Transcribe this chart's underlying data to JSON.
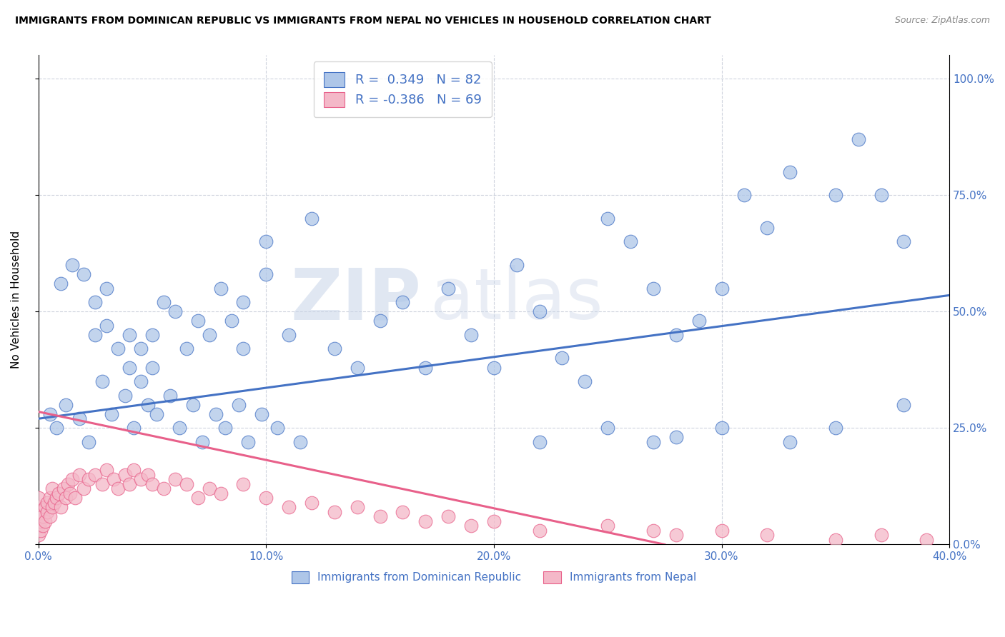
{
  "title": "IMMIGRANTS FROM DOMINICAN REPUBLIC VS IMMIGRANTS FROM NEPAL NO VEHICLES IN HOUSEHOLD CORRELATION CHART",
  "source": "Source: ZipAtlas.com",
  "ylabel": "No Vehicles in Household",
  "legend_label1": "Immigrants from Dominican Republic",
  "legend_label2": "Immigrants from Nepal",
  "r1": 0.349,
  "n1": 82,
  "r2": -0.386,
  "n2": 69,
  "color_blue": "#aec6e8",
  "color_pink": "#f4b8c8",
  "color_blue_dark": "#4472c4",
  "color_pink_dark": "#e8608a",
  "line_color_blue": "#4472c4",
  "line_color_pink": "#e8608a",
  "watermark_zip": "ZIP",
  "watermark_atlas": "atlas",
  "xlim": [
    0.0,
    0.4
  ],
  "ylim": [
    0.0,
    1.05
  ],
  "blue_trend_x0": 0.0,
  "blue_trend_y0": 0.27,
  "blue_trend_x1": 0.4,
  "blue_trend_y1": 0.535,
  "pink_trend_x0": 0.0,
  "pink_trend_y0": 0.285,
  "pink_trend_x1": 0.275,
  "pink_trend_y1": 0.0,
  "blue_x": [
    0.01,
    0.015,
    0.02,
    0.025,
    0.025,
    0.03,
    0.03,
    0.035,
    0.04,
    0.04,
    0.045,
    0.045,
    0.05,
    0.05,
    0.055,
    0.06,
    0.065,
    0.07,
    0.075,
    0.08,
    0.085,
    0.09,
    0.09,
    0.1,
    0.1,
    0.11,
    0.12,
    0.13,
    0.14,
    0.15,
    0.16,
    0.17,
    0.18,
    0.19,
    0.2,
    0.21,
    0.22,
    0.23,
    0.24,
    0.25,
    0.26,
    0.27,
    0.28,
    0.29,
    0.3,
    0.31,
    0.32,
    0.33,
    0.35,
    0.36,
    0.37,
    0.38,
    0.38,
    0.35,
    0.33,
    0.3,
    0.28,
    0.27,
    0.25,
    0.22,
    0.005,
    0.008,
    0.012,
    0.018,
    0.022,
    0.028,
    0.032,
    0.038,
    0.042,
    0.048,
    0.052,
    0.058,
    0.062,
    0.068,
    0.072,
    0.078,
    0.082,
    0.088,
    0.092,
    0.098,
    0.105,
    0.115
  ],
  "blue_y": [
    0.56,
    0.6,
    0.58,
    0.45,
    0.52,
    0.47,
    0.55,
    0.42,
    0.38,
    0.45,
    0.35,
    0.42,
    0.38,
    0.45,
    0.52,
    0.5,
    0.42,
    0.48,
    0.45,
    0.55,
    0.48,
    0.52,
    0.42,
    0.65,
    0.58,
    0.45,
    0.7,
    0.42,
    0.38,
    0.48,
    0.52,
    0.38,
    0.55,
    0.45,
    0.38,
    0.6,
    0.5,
    0.4,
    0.35,
    0.7,
    0.65,
    0.55,
    0.45,
    0.48,
    0.55,
    0.75,
    0.68,
    0.8,
    0.75,
    0.87,
    0.75,
    0.65,
    0.3,
    0.25,
    0.22,
    0.25,
    0.23,
    0.22,
    0.25,
    0.22,
    0.28,
    0.25,
    0.3,
    0.27,
    0.22,
    0.35,
    0.28,
    0.32,
    0.25,
    0.3,
    0.28,
    0.32,
    0.25,
    0.3,
    0.22,
    0.28,
    0.25,
    0.3,
    0.22,
    0.28,
    0.25,
    0.22
  ],
  "pink_x": [
    0.0,
    0.0,
    0.0,
    0.0,
    0.0,
    0.001,
    0.001,
    0.001,
    0.002,
    0.002,
    0.003,
    0.003,
    0.004,
    0.004,
    0.005,
    0.005,
    0.006,
    0.006,
    0.007,
    0.008,
    0.009,
    0.01,
    0.011,
    0.012,
    0.013,
    0.014,
    0.015,
    0.016,
    0.018,
    0.02,
    0.022,
    0.025,
    0.028,
    0.03,
    0.033,
    0.035,
    0.038,
    0.04,
    0.042,
    0.045,
    0.048,
    0.05,
    0.055,
    0.06,
    0.065,
    0.07,
    0.075,
    0.08,
    0.09,
    0.1,
    0.11,
    0.12,
    0.13,
    0.14,
    0.15,
    0.16,
    0.17,
    0.18,
    0.19,
    0.2,
    0.22,
    0.25,
    0.27,
    0.28,
    0.3,
    0.32,
    0.35,
    0.37,
    0.39
  ],
  "pink_y": [
    0.02,
    0.04,
    0.06,
    0.08,
    0.1,
    0.03,
    0.05,
    0.07,
    0.04,
    0.06,
    0.05,
    0.08,
    0.07,
    0.09,
    0.06,
    0.1,
    0.08,
    0.12,
    0.09,
    0.1,
    0.11,
    0.08,
    0.12,
    0.1,
    0.13,
    0.11,
    0.14,
    0.1,
    0.15,
    0.12,
    0.14,
    0.15,
    0.13,
    0.16,
    0.14,
    0.12,
    0.15,
    0.13,
    0.16,
    0.14,
    0.15,
    0.13,
    0.12,
    0.14,
    0.13,
    0.1,
    0.12,
    0.11,
    0.13,
    0.1,
    0.08,
    0.09,
    0.07,
    0.08,
    0.06,
    0.07,
    0.05,
    0.06,
    0.04,
    0.05,
    0.03,
    0.04,
    0.03,
    0.02,
    0.03,
    0.02,
    0.01,
    0.02,
    0.01
  ]
}
